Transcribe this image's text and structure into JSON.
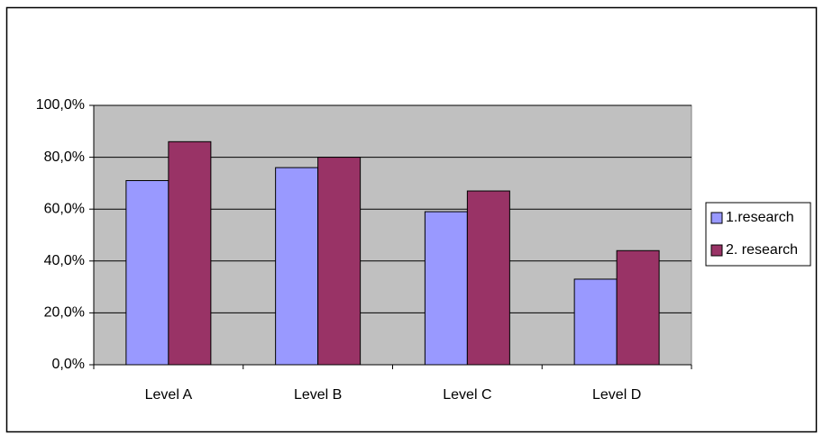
{
  "chart_data": {
    "type": "bar",
    "categories": [
      "Level A",
      "Level B",
      "Level C",
      "Level D"
    ],
    "series": [
      {
        "name": "1.research",
        "color": "#9999ff",
        "values": [
          71,
          76,
          59,
          33
        ]
      },
      {
        "name": "2. research",
        "color": "#993366",
        "values": [
          86,
          80,
          67,
          44
        ]
      }
    ],
    "ylim": [
      0,
      100
    ],
    "yticks": [
      {
        "value": 0,
        "label": "0,0%"
      },
      {
        "value": 20,
        "label": "20,0%"
      },
      {
        "value": 40,
        "label": "40,0%"
      },
      {
        "value": 60,
        "label": "60,0%"
      },
      {
        "value": 80,
        "label": "80,0%"
      },
      {
        "value": 100,
        "label": "100,0%"
      }
    ],
    "grid": true,
    "legend": "right",
    "plot_background": "#c0c0c0"
  }
}
